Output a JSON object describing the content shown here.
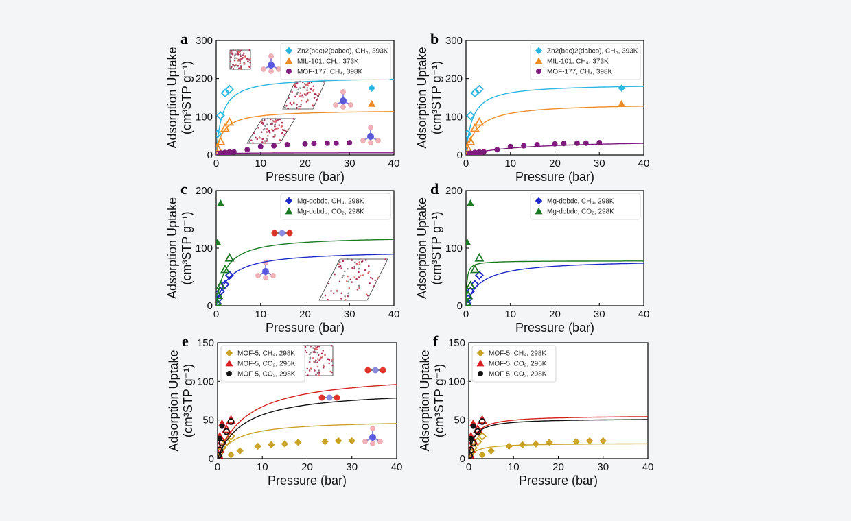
{
  "figure": {
    "axis_labels": {
      "x": "Pressure (bar)",
      "y_main": "Adsorption Uptake",
      "y_unit": "(cm³STP g⁻¹)"
    }
  },
  "chart_data": [
    {
      "panel": "a",
      "type": "scatter",
      "xlabel": "Pressure (bar)",
      "ylabel": "Adsorption Uptake (cm3 STP g-1)",
      "xlim": [
        0,
        40
      ],
      "ylim": [
        0,
        300
      ],
      "xticks": [
        0,
        10,
        20,
        30,
        40
      ],
      "yticks": [
        0,
        100,
        200,
        300
      ],
      "legend_position": "top-right",
      "has_structure_insets": true,
      "series": [
        {
          "name": "Zn2(bdc)2(dabco), CH₄, 393K",
          "color": "#29b6e0",
          "marker": "diamond",
          "open_x": [
            0.3,
            1,
            2,
            3
          ],
          "open_y": [
            55,
            103,
            162,
            172
          ],
          "filled_x": [
            35
          ],
          "filled_y": [
            175
          ],
          "fit": {
            "qmax": 205,
            "b": 0.75
          }
        },
        {
          "name": "MIL-101, CH₄, 373K",
          "color": "#ef8d25",
          "marker": "triangle",
          "open_x": [
            0.3,
            1,
            2,
            3
          ],
          "open_y": [
            18,
            35,
            70,
            86
          ],
          "filled_x": [
            35
          ],
          "filled_y": [
            134
          ],
          "fit": {
            "qmax": 118,
            "b": 0.65
          }
        },
        {
          "name": "MOF-177, CH₄, 398K",
          "color": "#7d1a7c",
          "marker": "circle",
          "open_x": [
            0.3,
            1,
            2,
            3
          ],
          "open_y": [
            2,
            3,
            5,
            6
          ],
          "filled_x": [
            1,
            2,
            3,
            4,
            7,
            10,
            13,
            16,
            20,
            22,
            25,
            27,
            30
          ],
          "filled_y": [
            5,
            6,
            7,
            8,
            14,
            22,
            24,
            27,
            29,
            30,
            31,
            31,
            32
          ],
          "fit": {
            "qmax": 6,
            "b": 0.6
          }
        }
      ]
    },
    {
      "panel": "b",
      "type": "scatter",
      "xlabel": "Pressure (bar)",
      "ylabel": "Adsorption Uptake (cm3 STP g-1)",
      "xlim": [
        0,
        40
      ],
      "ylim": [
        0,
        300
      ],
      "xticks": [
        0,
        10,
        20,
        30,
        40
      ],
      "yticks": [
        0,
        100,
        200,
        300
      ],
      "legend_position": "top-right",
      "has_structure_insets": false,
      "series": [
        {
          "name": "Zn2(bdc)2(dabco), CH₄, 393K",
          "color": "#29b6e0",
          "marker": "diamond",
          "open_x": [
            0.3,
            1,
            2,
            3
          ],
          "open_y": [
            55,
            103,
            162,
            172
          ],
          "filled_x": [
            35
          ],
          "filled_y": [
            175
          ],
          "fit": {
            "qmax": 186,
            "b": 0.7
          }
        },
        {
          "name": "MIL-101, CH₄, 373K",
          "color": "#ef8d25",
          "marker": "triangle",
          "open_x": [
            0.3,
            1,
            2,
            3
          ],
          "open_y": [
            18,
            35,
            70,
            86
          ],
          "filled_x": [
            35
          ],
          "filled_y": [
            134
          ],
          "fit": {
            "qmax": 136,
            "b": 0.4
          }
        },
        {
          "name": "MOF-177, CH₄, 398K",
          "color": "#7d1a7c",
          "marker": "circle",
          "open_x": [
            0.3,
            1,
            2,
            3
          ],
          "open_y": [
            2,
            3,
            5,
            6
          ],
          "filled_x": [
            1,
            2,
            3,
            4,
            7,
            10,
            13,
            16,
            20,
            22,
            25,
            27,
            30
          ],
          "filled_y": [
            5,
            6,
            7,
            8,
            14,
            22,
            24,
            27,
            29,
            30,
            31,
            31,
            32
          ],
          "fit": {
            "qmax": 40,
            "b": 0.08
          }
        }
      ]
    },
    {
      "panel": "c",
      "type": "scatter",
      "xlabel": "Pressure (bar)",
      "ylabel": "Adsorption Uptake (cm3 STP g-1)",
      "xlim": [
        0,
        40
      ],
      "ylim": [
        0,
        200
      ],
      "xticks": [
        0,
        10,
        20,
        30,
        40
      ],
      "yticks": [
        0,
        100,
        200
      ],
      "legend_position": "top-right",
      "has_structure_insets": true,
      "series": [
        {
          "name": "Mg-dobdc, CH₄, 298K",
          "color": "#1e28c8",
          "marker": "diamond",
          "open_x": [
            0.2,
            0.5,
            1,
            2,
            3
          ],
          "open_y": [
            4,
            12,
            25,
            37,
            53
          ],
          "filled_x": [],
          "filled_y": [],
          "fit": {
            "qmax": 96,
            "b": 0.35
          }
        },
        {
          "name": "Mg-dobdc, CO₂, 298K",
          "color": "#1c7a24",
          "marker": "triangle",
          "open_x": [
            0.2,
            0.5,
            1,
            2,
            3
          ],
          "open_y": [
            6,
            18,
            35,
            63,
            83
          ],
          "filled_x": [
            0.3,
            1
          ],
          "filled_y": [
            110,
            178
          ],
          "fit": {
            "qmax": 121,
            "b": 0.5
          }
        }
      ]
    },
    {
      "panel": "d",
      "type": "scatter",
      "xlabel": "Pressure (bar)",
      "ylabel": "Adsorption Uptake (cm3 STP g-1)",
      "xlim": [
        0,
        40
      ],
      "ylim": [
        0,
        200
      ],
      "xticks": [
        0,
        10,
        20,
        30,
        40
      ],
      "yticks": [
        0,
        100,
        200
      ],
      "legend_position": "top-right",
      "has_structure_insets": false,
      "series": [
        {
          "name": "Mg-dobdc, CH₄, 298K",
          "color": "#1e28c8",
          "marker": "diamond",
          "open_x": [
            0.2,
            0.5,
            1,
            2,
            3
          ],
          "open_y": [
            4,
            12,
            25,
            37,
            53
          ],
          "filled_x": [],
          "filled_y": [],
          "fit": {
            "qmax": 80,
            "b": 0.3
          }
        },
        {
          "name": "Mg-dobdc, CO₂, 298K",
          "color": "#1c7a24",
          "marker": "triangle",
          "open_x": [
            0.2,
            0.5,
            1,
            2,
            3
          ],
          "open_y": [
            6,
            18,
            35,
            63,
            83
          ],
          "filled_x": [
            0.3,
            1
          ],
          "filled_y": [
            110,
            178
          ],
          "fit": {
            "qmax": 78,
            "b": 5
          }
        }
      ]
    },
    {
      "panel": "e",
      "type": "scatter",
      "xlabel": "Pressure (bar)",
      "ylabel": "Adsorption Uptake (cm3 STP g-1)",
      "xlim": [
        0,
        40
      ],
      "ylim": [
        0,
        150
      ],
      "xticks": [
        0,
        10,
        20,
        30,
        40
      ],
      "yticks": [
        0,
        50,
        100,
        150
      ],
      "legend_position": "top-left",
      "has_structure_insets": true,
      "series": [
        {
          "name": "MOF-5, CH₄, 298K",
          "color": "#c9a227",
          "marker": "diamond",
          "open_x": [
            0.2,
            0.5,
            1,
            2,
            3
          ],
          "open_y": [
            3,
            8,
            14,
            22,
            29
          ],
          "filled_x": [
            3,
            5,
            9,
            12,
            15,
            18,
            24,
            27,
            30
          ],
          "filled_y": [
            5,
            10,
            16,
            18,
            19,
            21,
            22,
            23,
            23
          ],
          "fit": {
            "qmax": 50,
            "b": 0.25
          }
        },
        {
          "name": "MOF-5, CO₂, 296K",
          "color": "#d42020",
          "marker": "triangle",
          "open_x": [
            0.2,
            0.5,
            1,
            2,
            3
          ],
          "open_y": [
            5,
            12,
            23,
            38,
            50
          ],
          "filled_x": [
            0.5,
            1
          ],
          "filled_y": [
            30,
            46
          ],
          "fit": {
            "qmax": 112,
            "b": 0.15
          }
        },
        {
          "name": "MOF-5, CO₂, 298K",
          "color": "#111111",
          "marker": "circle",
          "open_x": [
            0.2,
            0.5,
            1,
            2,
            3
          ],
          "open_y": [
            4,
            11,
            20,
            35,
            48
          ],
          "filled_x": [
            0.5,
            1
          ],
          "filled_y": [
            26,
            42
          ],
          "fit": {
            "qmax": 90,
            "b": 0.17
          }
        }
      ]
    },
    {
      "panel": "f",
      "type": "scatter",
      "xlabel": "Pressure (bar)",
      "ylabel": "Adsorption Uptake (cm3 STP g-1)",
      "xlim": [
        0,
        40
      ],
      "ylim": [
        0,
        150
      ],
      "xticks": [
        0,
        10,
        20,
        30,
        40
      ],
      "yticks": [
        0,
        50,
        100,
        150
      ],
      "legend_position": "top-left",
      "has_structure_insets": false,
      "series": [
        {
          "name": "MOF-5, CH₄, 298K",
          "color": "#c9a227",
          "marker": "diamond",
          "open_x": [
            0.2,
            0.5,
            1,
            2,
            3
          ],
          "open_y": [
            3,
            8,
            14,
            22,
            29
          ],
          "filled_x": [
            3,
            5,
            9,
            12,
            15,
            18,
            24,
            27,
            30
          ],
          "filled_y": [
            5,
            10,
            16,
            18,
            19,
            21,
            22,
            23,
            23
          ],
          "fit": {
            "qmax": 20,
            "b": 0.6
          }
        },
        {
          "name": "MOF-5, CO₂, 296K",
          "color": "#d42020",
          "marker": "triangle",
          "open_x": [
            0.2,
            0.5,
            1,
            2,
            3
          ],
          "open_y": [
            5,
            12,
            23,
            38,
            50
          ],
          "filled_x": [
            0.5,
            1
          ],
          "filled_y": [
            30,
            46
          ],
          "fit": {
            "qmax": 56,
            "b": 0.8
          }
        },
        {
          "name": "MOF-5, CO₂, 298K",
          "color": "#111111",
          "marker": "circle",
          "open_x": [
            0.2,
            0.5,
            1,
            2,
            3
          ],
          "open_y": [
            4,
            11,
            20,
            35,
            48
          ],
          "filled_x": [
            0.5,
            1
          ],
          "filled_y": [
            26,
            42
          ],
          "fit": {
            "qmax": 52,
            "b": 0.9
          }
        }
      ]
    }
  ]
}
